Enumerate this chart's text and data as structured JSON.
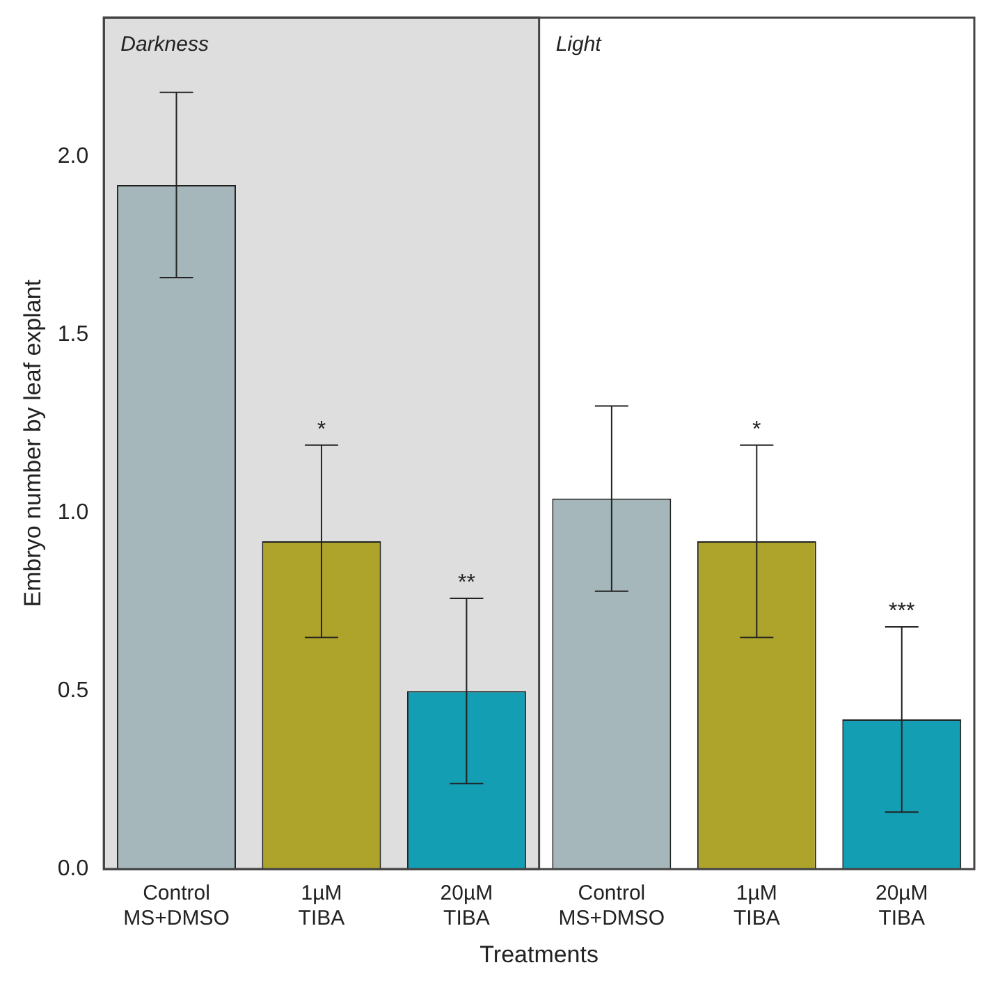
{
  "chart_data": {
    "type": "bar",
    "xlabel": "Treatments",
    "ylabel": "Embryo number by leaf explant",
    "categories": [
      "Control\nMS+DMSO",
      "1µM\nTIBA",
      "20µM\nTIBA",
      "Control\nMS+DMSO",
      "1µM\nTIBA",
      "20µM\nTIBA"
    ],
    "values": [
      1.92,
      0.92,
      0.5,
      1.04,
      0.92,
      0.42
    ],
    "colors": [
      "#a5b7bb",
      "#aea32b",
      "#139eb3",
      "#a5b7bb",
      "#aea32b",
      "#139eb3"
    ],
    "errors": [
      0.26,
      0.27,
      0.26,
      0.26,
      0.27,
      0.26
    ],
    "ylim": [
      0,
      2.39
    ],
    "yticks": [
      {
        "value": 0,
        "label": "0.0"
      },
      {
        "value": 0.5,
        "label": "0.5"
      },
      {
        "value": 1,
        "label": "1.0"
      },
      {
        "value": 1.5,
        "label": "1.5"
      },
      {
        "value": 2,
        "label": "2.0"
      }
    ],
    "bands": [
      {
        "axis": "x",
        "from": "Control\nMS+DMSO",
        "to": "20µM\nTIBA",
        "label": "Darkness",
        "color": "#dedede"
      }
    ],
    "annotations": [
      "Light",
      "*",
      "**",
      "*",
      "***"
    ],
    "grid": false,
    "legend": false
  }
}
